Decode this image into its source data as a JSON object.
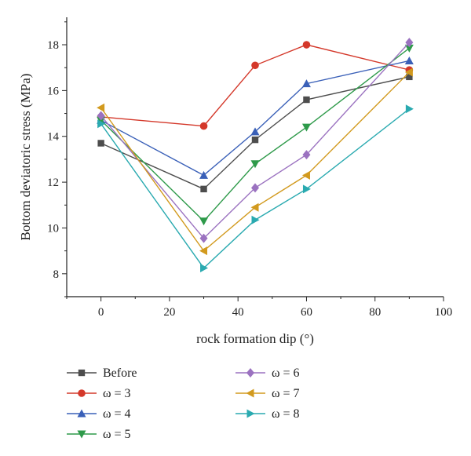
{
  "chart_data": {
    "type": "line",
    "title": "",
    "xlabel": "rock formation dip (°)",
    "ylabel": "Bottom deviatoric stress (MPa)",
    "xlim": [
      -10,
      100
    ],
    "ylim": [
      7,
      19.2
    ],
    "xticks": [
      0,
      20,
      40,
      60,
      80,
      100
    ],
    "yticks": [
      8,
      10,
      12,
      14,
      16,
      18
    ],
    "x": [
      0,
      30,
      45,
      60,
      90
    ],
    "grid": false,
    "legend_position": "bottom",
    "series": [
      {
        "name": "Before",
        "color": "#4d4d4d",
        "marker": "square",
        "values": [
          13.7,
          11.7,
          13.85,
          15.6,
          16.6
        ]
      },
      {
        "name": "ω = 3",
        "color": "#d4382a",
        "marker": "circle",
        "values": [
          14.85,
          14.45,
          17.1,
          18.0,
          16.9
        ]
      },
      {
        "name": "ω = 4",
        "color": "#3a60b8",
        "marker": "triangle-up",
        "values": [
          14.7,
          12.3,
          14.2,
          16.3,
          17.3
        ]
      },
      {
        "name": "ω = 5",
        "color": "#2e9a4a",
        "marker": "triangle-down",
        "values": [
          14.7,
          10.3,
          12.8,
          14.4,
          17.85
        ]
      },
      {
        "name": "ω = 6",
        "color": "#9b72c0",
        "marker": "diamond",
        "values": [
          14.9,
          9.55,
          11.75,
          13.2,
          18.1
        ]
      },
      {
        "name": "ω = 7",
        "color": "#d29a1e",
        "marker": "triangle-left",
        "values": [
          15.25,
          9.0,
          10.9,
          12.3,
          16.8
        ]
      },
      {
        "name": "ω = 8",
        "color": "#2aaab0",
        "marker": "triangle-right",
        "values": [
          14.55,
          8.25,
          10.35,
          11.7,
          15.2
        ]
      }
    ]
  }
}
